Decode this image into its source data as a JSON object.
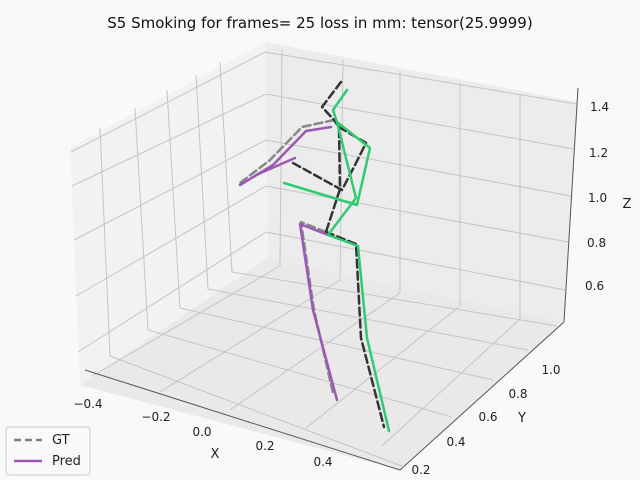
{
  "chart_data": {
    "type": "line",
    "projection": "3d",
    "title": "S5 Smoking for frames= 25 loss in mm: tensor(25.9999)",
    "xlabel": "X",
    "ylabel": "Y",
    "zlabel": "Z",
    "xticks": [
      "−0.4",
      "−0.2",
      "0.0",
      "0.2",
      "0.4"
    ],
    "yticks": [
      "0.2",
      "0.4",
      "0.6",
      "0.8",
      "1.0"
    ],
    "zticks": [
      "0.6",
      "0.8",
      "1.0",
      "1.2",
      "1.4"
    ],
    "grid": true,
    "legend": {
      "placement": "lower-left",
      "entries": [
        {
          "label": "GT",
          "style": "dashed",
          "color": "#808080"
        },
        {
          "label": "Pred",
          "style": "solid",
          "color": "#9b59b6"
        }
      ]
    },
    "colors": {
      "gt_left": "#888888",
      "gt_right": "#333333",
      "pred_left": "#9b59b6",
      "pred_right": "#2ecc71"
    }
  }
}
